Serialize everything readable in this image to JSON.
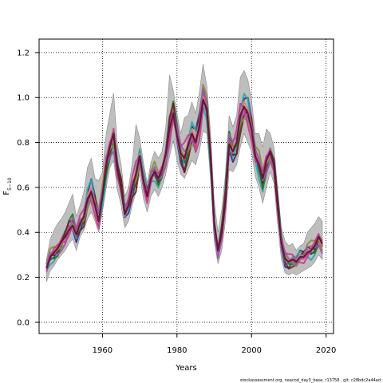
{
  "chart_data": {
    "type": "line",
    "title": "",
    "xlabel": "Years",
    "ylabel_main": "F",
    "ylabel_sub": "5−10",
    "xlim": [
      1943,
      2022
    ],
    "ylim": [
      -0.05,
      1.26
    ],
    "xticks": [
      1960,
      1980,
      2000,
      2020
    ],
    "yticks": [
      0.0,
      0.2,
      0.4,
      0.6,
      0.8,
      1.0,
      1.2
    ],
    "grid": "dotted",
    "envelope_color": "#bebebe",
    "series_colors": [
      "#2b2b8c",
      "#c9a227",
      "#2ca6a4",
      "#1e7b1e",
      "#d4527a",
      "#6b1f1f",
      "#8a8a3c",
      "#e07b8a",
      "#9b59b6",
      "#c23b8a"
    ],
    "x": [
      1945,
      1946,
      1947,
      1948,
      1949,
      1950,
      1951,
      1952,
      1953,
      1954,
      1955,
      1956,
      1957,
      1958,
      1959,
      1960,
      1961,
      1962,
      1963,
      1964,
      1965,
      1966,
      1967,
      1968,
      1969,
      1970,
      1971,
      1972,
      1973,
      1974,
      1975,
      1976,
      1977,
      1978,
      1979,
      1980,
      1981,
      1982,
      1983,
      1984,
      1985,
      1986,
      1987,
      1988,
      1989,
      1990,
      1991,
      1992,
      1993,
      1994,
      1995,
      1996,
      1997,
      1998,
      1999,
      2000,
      2001,
      2002,
      2003,
      2004,
      2005,
      2006,
      2007,
      2008,
      2009,
      2010,
      2011,
      2012,
      2013,
      2014,
      2015,
      2016,
      2017,
      2018,
      2019
    ],
    "median": [
      0.24,
      0.29,
      0.31,
      0.33,
      0.36,
      0.38,
      0.41,
      0.43,
      0.39,
      0.44,
      0.47,
      0.55,
      0.58,
      0.52,
      0.45,
      0.56,
      0.7,
      0.78,
      0.84,
      0.68,
      0.6,
      0.48,
      0.52,
      0.6,
      0.66,
      0.74,
      0.63,
      0.56,
      0.64,
      0.67,
      0.64,
      0.68,
      0.75,
      0.86,
      0.93,
      0.83,
      0.75,
      0.73,
      0.79,
      0.84,
      0.8,
      0.87,
      0.99,
      0.95,
      0.74,
      0.44,
      0.32,
      0.4,
      0.54,
      0.79,
      0.76,
      0.8,
      0.92,
      0.96,
      0.93,
      0.86,
      0.74,
      0.7,
      0.64,
      0.72,
      0.76,
      0.7,
      0.52,
      0.35,
      0.28,
      0.27,
      0.28,
      0.27,
      0.29,
      0.29,
      0.31,
      0.32,
      0.34,
      0.38,
      0.35
    ],
    "upper": [
      0.28,
      0.37,
      0.41,
      0.44,
      0.46,
      0.49,
      0.53,
      0.57,
      0.47,
      0.52,
      0.58,
      0.69,
      0.73,
      0.64,
      0.63,
      0.67,
      0.84,
      0.93,
      1.02,
      0.79,
      0.7,
      0.56,
      0.6,
      0.71,
      0.88,
      0.82,
      0.71,
      0.62,
      0.71,
      0.76,
      0.73,
      0.76,
      0.87,
      1.1,
      1.03,
      0.93,
      0.84,
      0.91,
      0.92,
      0.98,
      0.93,
      1.02,
      1.15,
      1.05,
      0.84,
      0.54,
      0.4,
      0.5,
      0.66,
      0.92,
      0.87,
      0.92,
      1.09,
      1.12,
      1.08,
      0.99,
      0.84,
      0.84,
      0.78,
      0.86,
      0.84,
      0.78,
      0.6,
      0.42,
      0.36,
      0.34,
      0.35,
      0.32,
      0.34,
      0.35,
      0.4,
      0.42,
      0.44,
      0.47,
      0.45
    ],
    "lower": [
      0.18,
      0.23,
      0.25,
      0.28,
      0.3,
      0.32,
      0.35,
      0.37,
      0.32,
      0.38,
      0.41,
      0.46,
      0.49,
      0.45,
      0.4,
      0.49,
      0.6,
      0.69,
      0.72,
      0.59,
      0.52,
      0.42,
      0.45,
      0.52,
      0.58,
      0.66,
      0.55,
      0.49,
      0.56,
      0.59,
      0.56,
      0.6,
      0.66,
      0.74,
      0.81,
      0.72,
      0.66,
      0.64,
      0.68,
      0.72,
      0.7,
      0.76,
      0.85,
      0.84,
      0.64,
      0.36,
      0.26,
      0.32,
      0.45,
      0.68,
      0.67,
      0.7,
      0.78,
      0.84,
      0.8,
      0.76,
      0.65,
      0.6,
      0.53,
      0.6,
      0.67,
      0.62,
      0.44,
      0.28,
      0.22,
      0.21,
      0.22,
      0.21,
      0.22,
      0.23,
      0.24,
      0.25,
      0.27,
      0.3,
      0.28
    ],
    "footer": "stockassessment.org, neacod_day3_base, r13758 , git: c28bdc2a44ad"
  }
}
